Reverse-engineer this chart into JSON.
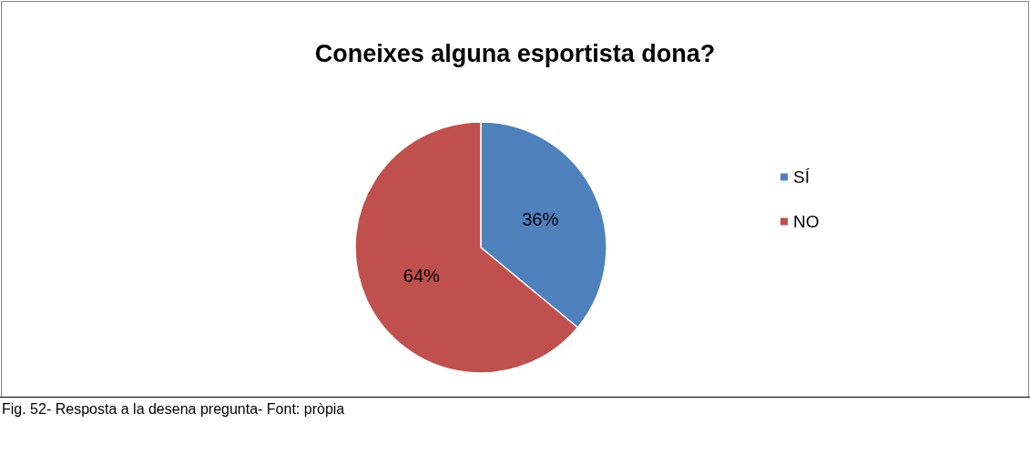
{
  "chart_data": {
    "type": "pie",
    "title": "Coneixes alguna esportista dona?",
    "categories": [
      "SÍ",
      "NO"
    ],
    "values": [
      36,
      64
    ],
    "value_labels": [
      "36%",
      "64%"
    ],
    "colors": [
      "#4f81bd",
      "#c0504d"
    ],
    "legend": "right",
    "annotations": [
      "Fig. 52- Resposta a la desena pregunta- Font: pròpia"
    ]
  }
}
